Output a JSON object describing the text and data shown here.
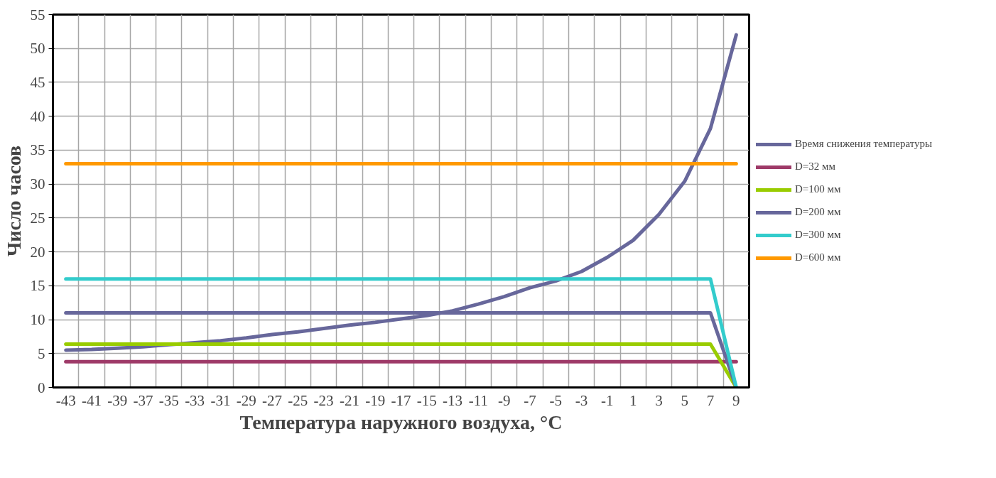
{
  "chart_data": {
    "type": "line",
    "xlabel": "Температура наружного воздуха, °C",
    "ylabel": "Число часов",
    "xlim": [
      -44,
      10
    ],
    "ylim": [
      0,
      55
    ],
    "xticks": [
      -43,
      -41,
      -39,
      -37,
      -35,
      -33,
      -31,
      -29,
      -27,
      -25,
      -23,
      -21,
      -19,
      -17,
      -15,
      -13,
      -11,
      -9,
      -7,
      -5,
      -3,
      -1,
      1,
      3,
      5,
      7,
      9
    ],
    "yticks": [
      0,
      5,
      10,
      15,
      20,
      25,
      30,
      35,
      40,
      45,
      50,
      55
    ],
    "grid": true,
    "legend": "right",
    "marker": "none",
    "line_style": "solid",
    "series": [
      {
        "name": "Время снижения температуры",
        "color": "#67679b",
        "x": [
          -43,
          -41,
          -39,
          -37,
          -35,
          -33,
          -31,
          -29,
          -27,
          -25,
          -23,
          -21,
          -19,
          -17,
          -15,
          -13,
          -11,
          -9,
          -7,
          -5,
          -3,
          -1,
          1,
          3,
          5,
          7,
          9
        ],
        "values": [
          5.5,
          5.6,
          5.8,
          6.0,
          6.3,
          6.6,
          6.9,
          7.3,
          7.8,
          8.2,
          8.7,
          9.2,
          9.6,
          10.1,
          10.6,
          11.3,
          12.3,
          13.4,
          14.7,
          15.7,
          17.1,
          19.2,
          21.7,
          25.5,
          30.4,
          38.2,
          52
        ]
      },
      {
        "name": "D=32 мм",
        "color": "#9e3a68",
        "x": [
          -43,
          9
        ],
        "values": [
          3.8,
          3.8
        ]
      },
      {
        "name": "D=100 мм",
        "color": "#99cc00",
        "x": [
          -43,
          7,
          9
        ],
        "values": [
          6.4,
          6.4,
          0
        ]
      },
      {
        "name": "D=200 мм",
        "color": "#67679b",
        "x": [
          -43,
          7,
          9
        ],
        "values": [
          11,
          11,
          0
        ]
      },
      {
        "name": "D=300 мм",
        "color": "#33cccc",
        "x": [
          -43,
          7,
          9
        ],
        "values": [
          16,
          16,
          0
        ]
      },
      {
        "name": "D=600 мм",
        "color": "#ff9900",
        "x": [
          -43,
          9
        ],
        "values": [
          33,
          33
        ]
      }
    ]
  }
}
